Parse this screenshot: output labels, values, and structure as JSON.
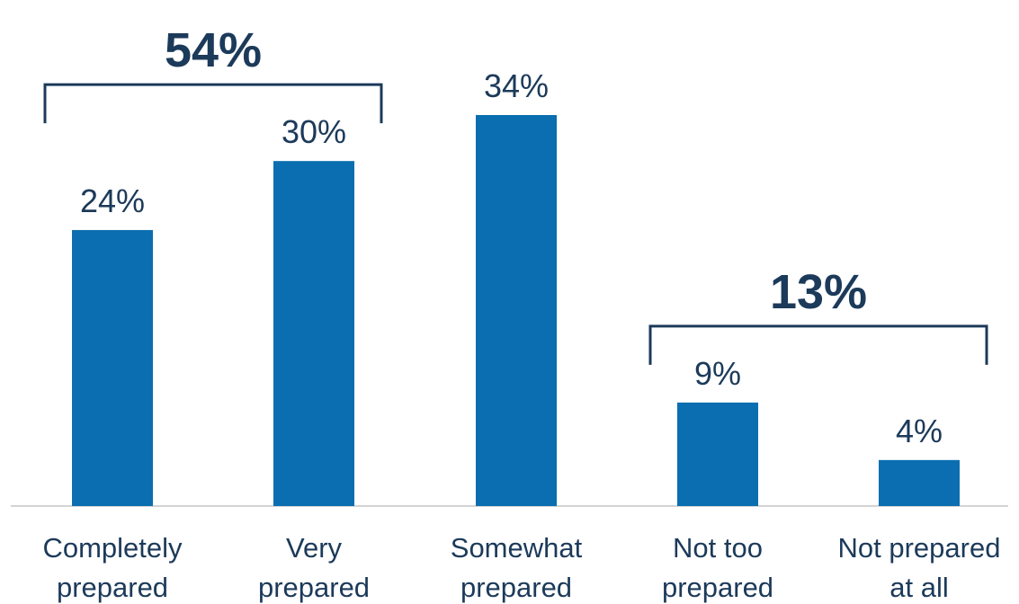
{
  "chart_data": {
    "type": "bar",
    "categories": [
      [
        "Completely",
        "prepared"
      ],
      [
        "Very",
        "prepared"
      ],
      [
        "Somewhat",
        "prepared"
      ],
      [
        "Not too",
        "prepared"
      ],
      [
        "Not prepared",
        "at all"
      ]
    ],
    "values": [
      24,
      30,
      34,
      9,
      4
    ],
    "value_labels": [
      "24%",
      "30%",
      "34%",
      "9%",
      "4%"
    ],
    "bar_color": "#0a6eb0",
    "text_color": "#1c3a5a",
    "ylim": [
      0,
      34
    ],
    "grid": false,
    "annotations": [
      {
        "label": "54%",
        "from_category": 0,
        "to_category": 1
      },
      {
        "label": "13%",
        "from_category": 3,
        "to_category": 4
      }
    ]
  }
}
